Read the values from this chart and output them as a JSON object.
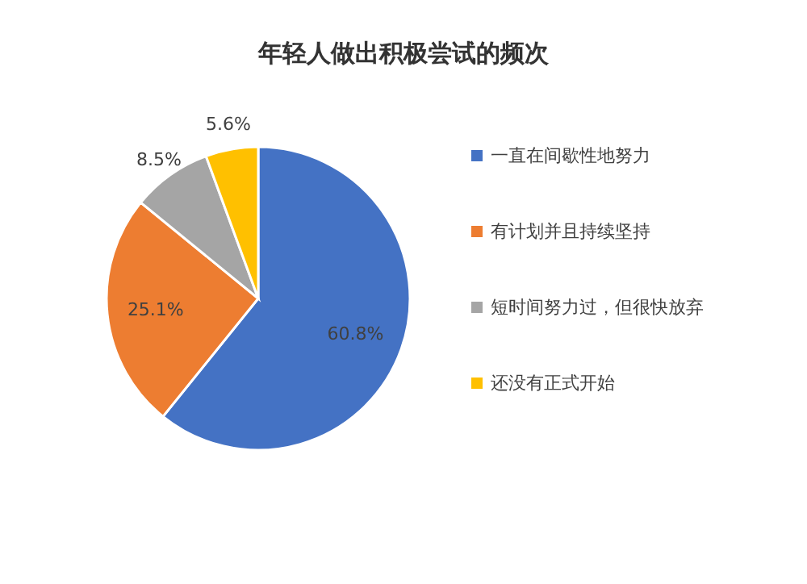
{
  "chart_data": {
    "type": "pie",
    "title": "年轻人做出积极尝试的频次",
    "categories": [
      "一直在间歇性地努力",
      "有计划并且持续坚持",
      "短时间努力过，但很快放弃",
      "还没有正式开始"
    ],
    "values": [
      60.8,
      25.1,
      8.5,
      5.6
    ],
    "value_labels": [
      "60.8%",
      "25.1%",
      "8.5%",
      "5.6%"
    ],
    "colors": [
      "#4472c4",
      "#ed7d31",
      "#a5a5a5",
      "#ffc000"
    ],
    "legend": "right"
  }
}
